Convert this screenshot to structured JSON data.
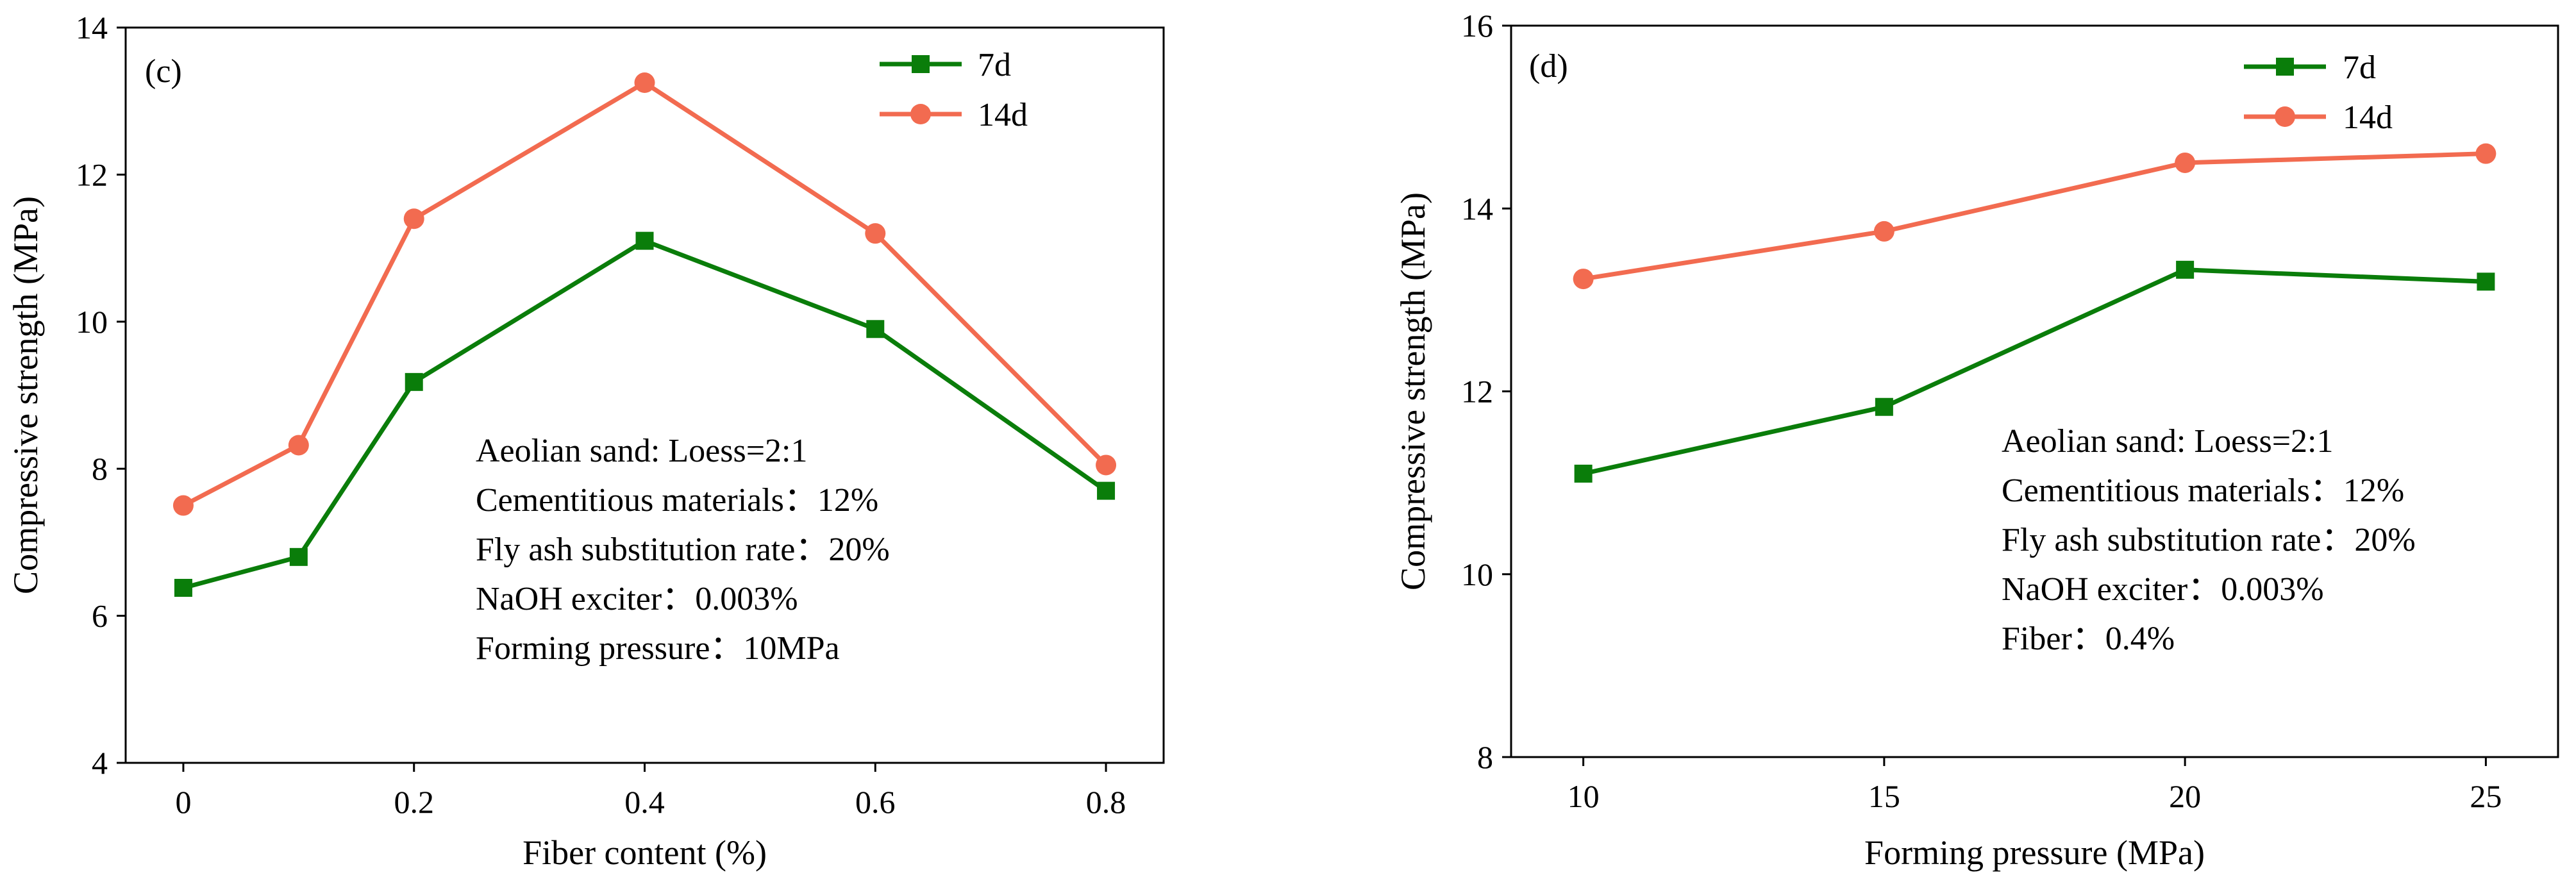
{
  "chart_data": [
    {
      "type": "line",
      "panel_label": "(c)",
      "xlabel": "Fiber content (%)",
      "ylabel": "Compressive strength (MPa)",
      "xlim": [
        -0.05,
        0.85
      ],
      "ylim": [
        4,
        14
      ],
      "xticks": [
        0,
        0.2,
        0.4,
        0.6,
        0.8
      ],
      "yticks": [
        4,
        6,
        8,
        10,
        12,
        14
      ],
      "xtick_labels": [
        "0",
        "0.2",
        "0.4",
        "0.6",
        "0.8"
      ],
      "ytick_labels": [
        "4",
        "6",
        "8",
        "10",
        "12",
        "14"
      ],
      "x": [
        0,
        0.1,
        0.2,
        0.4,
        0.6,
        0.8
      ],
      "series": [
        {
          "name": "7d",
          "color": "#0a7d0a",
          "marker": "square",
          "values": [
            6.38,
            6.8,
            9.18,
            11.1,
            9.9,
            7.7
          ]
        },
        {
          "name": "14d",
          "color": "#f26b50",
          "marker": "circle",
          "values": [
            7.5,
            8.32,
            11.4,
            13.25,
            11.2,
            8.05
          ]
        }
      ],
      "legend": "top-right",
      "annotations": [
        "Aeolian sand: Loess=2:1",
        "Cementitious materials：12%",
        "Fly ash substitution rate：20%",
        "NaOH exciter：0.003%",
        "Forming pressure：10MPa"
      ]
    },
    {
      "type": "line",
      "panel_label": "(d)",
      "xlabel": "Forming pressure (MPa)",
      "ylabel": "Compressive strength  (MPa)",
      "xlim": [
        8.8,
        26.2
      ],
      "ylim": [
        8,
        16
      ],
      "xticks": [
        10,
        15,
        20,
        25
      ],
      "yticks": [
        8,
        10,
        12,
        14,
        16
      ],
      "xtick_labels": [
        "10",
        "15",
        "20",
        "25"
      ],
      "ytick_labels": [
        "8",
        "10",
        "12",
        "14",
        "16"
      ],
      "x": [
        10,
        15,
        20,
        25
      ],
      "series": [
        {
          "name": "7d",
          "color": "#0a7d0a",
          "marker": "square",
          "values": [
            11.1,
            11.83,
            13.33,
            13.2
          ]
        },
        {
          "name": "14d",
          "color": "#f26b50",
          "marker": "circle",
          "values": [
            13.23,
            13.75,
            14.5,
            14.6
          ]
        }
      ],
      "legend": "top-right",
      "annotations": [
        "Aeolian sand: Loess=2:1",
        "Cementitious materials：12%",
        "Fly ash substitution rate：20%",
        "NaOH exciter：0.003%",
        "Fiber：0.4%"
      ]
    }
  ]
}
